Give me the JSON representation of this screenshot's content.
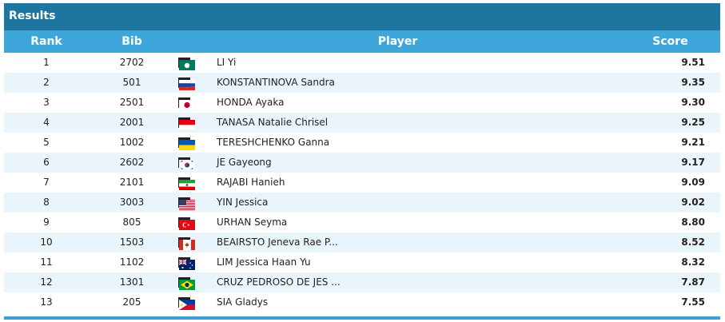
{
  "panel": {
    "title": "Results",
    "columns": {
      "rank": "Rank",
      "bib": "Bib",
      "player": "Player",
      "score": "Score"
    }
  },
  "rows": [
    {
      "rank": "1",
      "bib": "2702",
      "code": "MAC",
      "flag": "mac-flag",
      "name": "LI Yi",
      "score": "9.51"
    },
    {
      "rank": "2",
      "bib": "501",
      "code": "RUS",
      "flag": "rus-flag",
      "name": "KONSTANTINOVA Sandra",
      "score": "9.35"
    },
    {
      "rank": "3",
      "bib": "2501",
      "code": "JPN",
      "flag": "jpn-flag",
      "name": "HONDA Ayaka",
      "score": "9.30"
    },
    {
      "rank": "4",
      "bib": "2001",
      "code": "INA",
      "flag": "ina-flag",
      "name": "TANASA Natalie Chrisel",
      "score": "9.25"
    },
    {
      "rank": "5",
      "bib": "1002",
      "code": "UKR",
      "flag": "ukr-flag",
      "name": "TERESHCHENKO Ganna",
      "score": "9.21"
    },
    {
      "rank": "6",
      "bib": "2602",
      "code": "KOR",
      "flag": "kor-flag",
      "name": "JE Gayeong",
      "score": "9.17"
    },
    {
      "rank": "7",
      "bib": "2101",
      "code": "IRI",
      "flag": "iri-flag",
      "name": "RAJABI Hanieh",
      "score": "9.09"
    },
    {
      "rank": "8",
      "bib": "3003",
      "code": "USA",
      "flag": "usa-flag",
      "name": "YIN Jessica",
      "score": "9.02"
    },
    {
      "rank": "9",
      "bib": "805",
      "code": "TUR",
      "flag": "tur-flag",
      "name": "URHAN Seyma",
      "score": "8.80"
    },
    {
      "rank": "10",
      "bib": "1503",
      "code": "CAN",
      "flag": "can-flag",
      "name": "BEAIRSTO Jeneva Rae P...",
      "score": "8.52"
    },
    {
      "rank": "11",
      "bib": "1102",
      "code": "AUS",
      "flag": "aus-flag",
      "name": "LIM Jessica Haan Yu",
      "score": "8.32"
    },
    {
      "rank": "12",
      "bib": "1301",
      "code": "BRA",
      "flag": "bra-flag",
      "name": "CRUZ PEDROSO DE JES ...",
      "score": "7.87"
    },
    {
      "rank": "13",
      "bib": "205",
      "code": "PHI",
      "flag": "phi-flag",
      "name": "SIA Gladys",
      "score": "7.55"
    }
  ]
}
